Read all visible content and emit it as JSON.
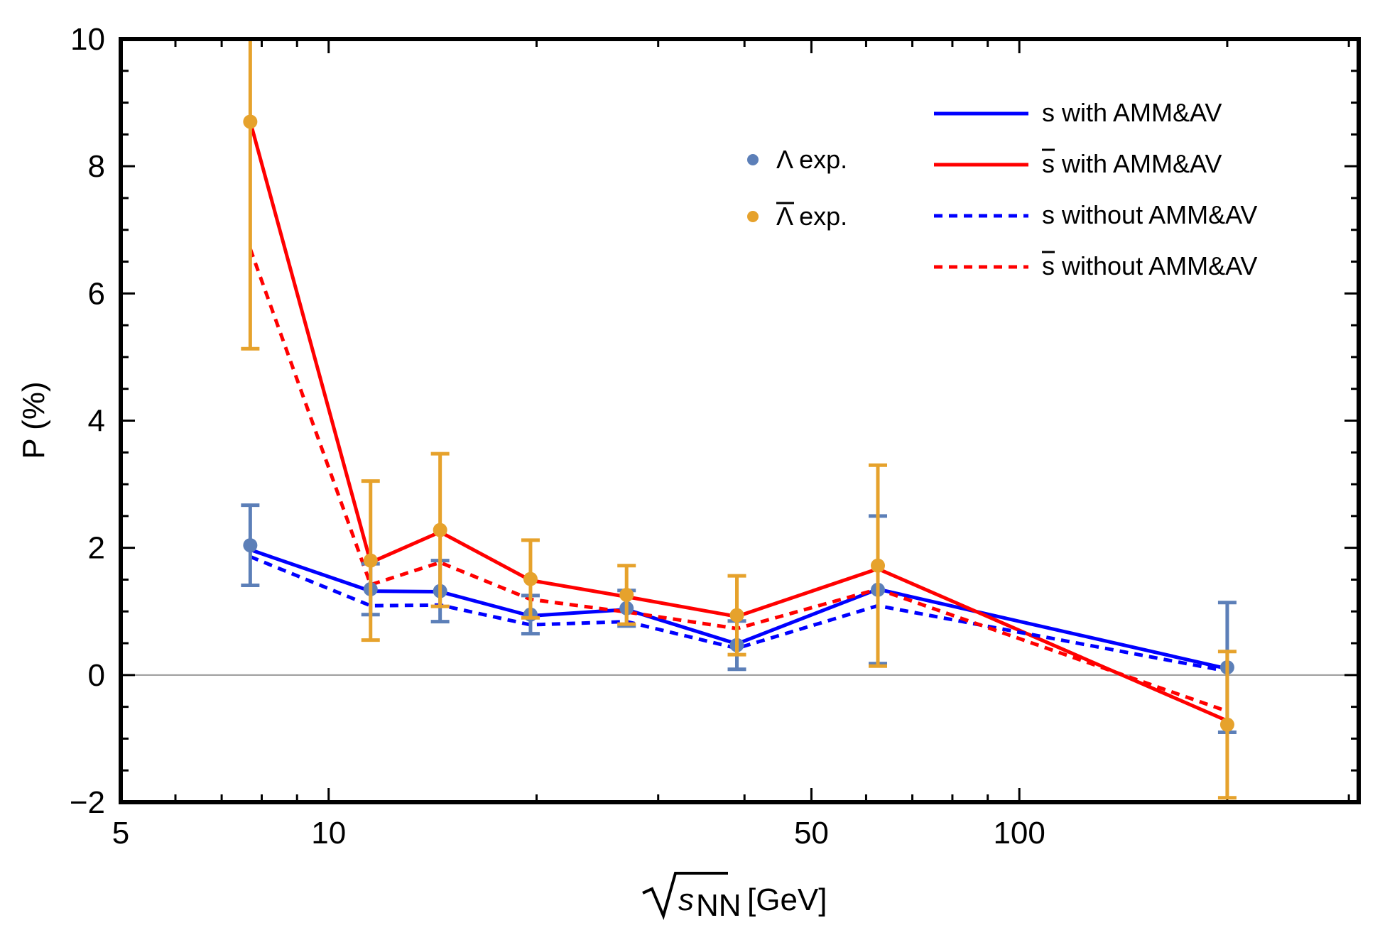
{
  "chart_data": {
    "type": "line",
    "xscale": "log",
    "xlabel_prefix": "s",
    "xlabel_sub": "NN",
    "xlabel_unit": "[GeV]",
    "ylabel": "P (%)",
    "xlim": [
      5,
      310
    ],
    "ylim": [
      -2,
      10
    ],
    "x_ticks": [
      5,
      10,
      50,
      100
    ],
    "y_ticks": [
      -2,
      0,
      2,
      4,
      6,
      8,
      10
    ],
    "x_points": [
      7.7,
      11.5,
      14.5,
      19.6,
      27,
      39,
      62.4,
      200
    ],
    "series": [
      {
        "name": "s with AMM&AV",
        "color": "#0000FF",
        "dash": "solid",
        "values": [
          [
            7.7,
            1.97
          ],
          [
            11.5,
            1.32
          ],
          [
            14.5,
            1.31
          ],
          [
            19.6,
            0.93
          ],
          [
            27,
            1.03
          ],
          [
            39,
            0.49
          ],
          [
            62.4,
            1.35
          ],
          [
            200,
            0.1
          ]
        ]
      },
      {
        "name": "s with AMM&AV",
        "overline": true,
        "color": "#FF0000",
        "dash": "solid",
        "values": [
          [
            7.7,
            8.7
          ],
          [
            11.5,
            1.77
          ],
          [
            14.5,
            2.25
          ],
          [
            19.6,
            1.49
          ],
          [
            27,
            1.23
          ],
          [
            39,
            0.92
          ],
          [
            62.4,
            1.67
          ],
          [
            200,
            -0.72
          ]
        ]
      },
      {
        "name": "s without AMM&AV",
        "color": "#0000FF",
        "dash": "dashed",
        "values": [
          [
            7.7,
            1.86
          ],
          [
            11.5,
            1.09
          ],
          [
            14.5,
            1.1
          ],
          [
            19.6,
            0.79
          ],
          [
            27,
            0.84
          ],
          [
            39,
            0.42
          ],
          [
            62.4,
            1.09
          ],
          [
            200,
            0.06
          ]
        ]
      },
      {
        "name": "s without AMM&AV",
        "overline": true,
        "color": "#FF0000",
        "dash": "dashed",
        "values": [
          [
            7.7,
            6.7
          ],
          [
            11.5,
            1.42
          ],
          [
            14.5,
            1.77
          ],
          [
            19.6,
            1.19
          ],
          [
            27,
            0.99
          ],
          [
            39,
            0.73
          ],
          [
            62.4,
            1.35
          ],
          [
            200,
            -0.57
          ]
        ]
      }
    ],
    "points": [
      {
        "name": "Λ exp.",
        "color": "#5C7FB8",
        "values": [
          [
            7.7,
            2.04,
            0.63
          ],
          [
            11.5,
            1.35,
            0.4
          ],
          [
            14.5,
            1.32,
            0.48
          ],
          [
            19.6,
            0.95,
            0.3
          ],
          [
            27,
            1.05,
            0.28
          ],
          [
            39,
            0.47,
            0.38
          ],
          [
            62.4,
            1.34,
            1.16
          ],
          [
            200,
            0.12,
            1.02
          ]
        ]
      },
      {
        "name": "Λ exp.",
        "overline": true,
        "color": "#E6A22C",
        "values": [
          [
            7.7,
            8.7,
            3.57
          ],
          [
            11.5,
            1.8,
            1.25
          ],
          [
            14.5,
            2.28,
            1.2
          ],
          [
            19.6,
            1.51,
            0.61
          ],
          [
            27,
            1.26,
            0.46
          ],
          [
            39,
            0.94,
            0.62
          ],
          [
            62.4,
            1.72,
            1.58
          ],
          [
            200,
            -0.78,
            1.15
          ]
        ]
      }
    ]
  }
}
